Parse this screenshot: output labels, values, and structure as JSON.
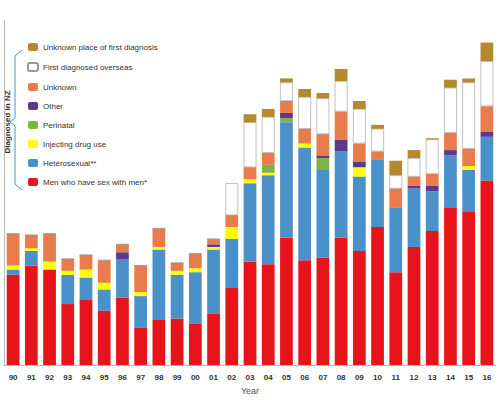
{
  "chart_data": {
    "type": "bar",
    "stacked": true,
    "x_label": "Year",
    "annotation": "Diagnosed in NZ",
    "categories": [
      "90",
      "91",
      "92",
      "93",
      "94",
      "95",
      "96",
      "97",
      "98",
      "99",
      "00",
      "01",
      "02",
      "03",
      "04",
      "05",
      "06",
      "07",
      "08",
      "09",
      "10",
      "11",
      "12",
      "13",
      "14",
      "15",
      "16"
    ],
    "ylim": [
      0,
      260
    ],
    "yticks": [],
    "tick_labels": "x",
    "grid": false,
    "legend": "upper left",
    "series": [
      {
        "name": "Men who have sex with men*",
        "color": "#e8141b",
        "values": [
          68,
          75,
          72,
          46,
          49,
          41,
          51,
          28,
          34,
          35,
          31,
          39,
          58,
          78,
          76,
          96,
          79,
          81,
          96,
          86,
          104,
          70,
          89,
          101,
          119,
          116,
          139
        ]
      },
      {
        "name": "Heterosexual**",
        "color": "#4a90c9",
        "values": [
          4,
          11,
          0,
          22,
          17,
          16,
          29,
          24,
          53,
          33,
          39,
          48,
          37,
          59,
          67,
          87,
          85,
          66,
          65,
          56,
          51,
          49,
          44,
          30,
          39,
          31,
          33
        ]
      },
      {
        "name": "Injecting drug use",
        "color": "#ffff00",
        "values": [
          3,
          2,
          6,
          3,
          6,
          5,
          0,
          3,
          2,
          3,
          3,
          2,
          9,
          3,
          2,
          0,
          3,
          0,
          0,
          7,
          0,
          0,
          0,
          0,
          0,
          3,
          0
        ]
      },
      {
        "name": "Perinatal",
        "color": "#7cb342",
        "values": [
          0,
          0,
          0,
          0,
          0,
          0,
          0,
          0,
          0,
          0,
          0,
          0,
          0,
          0,
          6,
          3,
          0,
          9,
          0,
          0,
          0,
          0,
          0,
          0,
          0,
          0,
          0
        ]
      },
      {
        "name": "Other",
        "color": "#5b3a8c",
        "values": [
          0,
          0,
          0,
          0,
          0,
          0,
          5,
          0,
          0,
          0,
          0,
          2,
          0,
          0,
          0,
          4,
          0,
          2,
          9,
          4,
          0,
          0,
          2,
          4,
          4,
          0,
          4
        ]
      },
      {
        "name": "Unknown",
        "color": "#e87c4a",
        "values": [
          24,
          10,
          21,
          9,
          11,
          17,
          6,
          20,
          14,
          6,
          11,
          4,
          9,
          9,
          9,
          9,
          11,
          16,
          21,
          14,
          6,
          14,
          7,
          9,
          13,
          13,
          19
        ]
      },
      {
        "name": "First diagnosed overseas",
        "color": "#ffffff",
        "values": [
          0,
          0,
          0,
          0,
          0,
          0,
          0,
          0,
          0,
          0,
          0,
          0,
          24,
          34,
          27,
          14,
          24,
          27,
          23,
          26,
          17,
          10,
          14,
          26,
          34,
          50,
          34
        ]
      },
      {
        "name": "Unknown place of first diagnosis",
        "color": "#b5892f",
        "values": [
          0,
          0,
          0,
          0,
          0,
          0,
          0,
          0,
          0,
          0,
          0,
          0,
          0,
          6,
          6,
          3,
          6,
          4,
          9,
          6,
          3,
          11,
          6,
          1,
          6,
          3,
          14
        ]
      }
    ]
  }
}
